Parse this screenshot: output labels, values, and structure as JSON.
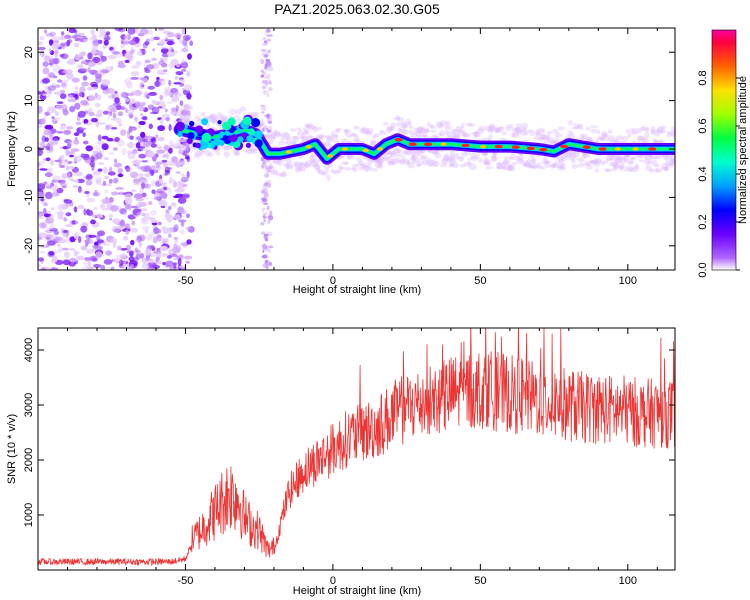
{
  "title": "PAZ1.2025.063.02.30.G05",
  "chart_data": [
    {
      "type": "heatmap",
      "xlabel": "Height of straight line (km)",
      "ylabel": "Frequency (Hz)",
      "xlim": [
        -100,
        116
      ],
      "ylim": [
        -25,
        25
      ],
      "xticks": [
        -50,
        0,
        50,
        100
      ],
      "yticks": [
        -20,
        -10,
        0,
        10,
        20
      ],
      "colorbar": {
        "label": "Normalized spectral amplitude",
        "range": [
          0,
          1
        ],
        "ticks": [
          0.0,
          0.2,
          0.4,
          0.6,
          0.8
        ],
        "colormap": "rainbow"
      },
      "ridge": {
        "x": [
          -52,
          -45,
          -40,
          -35,
          -30,
          -26,
          -22,
          -18,
          -14,
          -10,
          -6,
          -2,
          2,
          6,
          10,
          14,
          18,
          22,
          26,
          30,
          40,
          50,
          60,
          70,
          75,
          80,
          90,
          100,
          110,
          116
        ],
        "y": [
          4,
          3,
          2.5,
          3,
          4,
          3,
          -1,
          -1,
          -0.5,
          0,
          1,
          -2,
          0,
          0,
          0,
          -1,
          1,
          2,
          1,
          1,
          1,
          0.5,
          0.5,
          0,
          -0.5,
          1,
          0,
          0,
          0,
          0
        ]
      },
      "noise_region_x": [
        -100,
        -48
      ],
      "noise_band_x": [
        -24,
        -21
      ]
    },
    {
      "type": "line",
      "xlabel": "Height of straight line (km)",
      "ylabel": "SNR (10 * v/v)",
      "xlim": [
        -100,
        116
      ],
      "ylim": [
        0,
        4400
      ],
      "xticks": [
        -50,
        0,
        50,
        100
      ],
      "yticks": [
        1000,
        2000,
        3000,
        4000
      ],
      "color": "#ee3333",
      "envelope": {
        "x": [
          -100,
          -55,
          -50,
          -48,
          -45,
          -40,
          -35,
          -32,
          -30,
          -28,
          -25,
          -22,
          -20,
          -18,
          -15,
          -10,
          -5,
          0,
          5,
          10,
          15,
          20,
          25,
          30,
          35,
          40,
          45,
          50,
          55,
          60,
          65,
          70,
          75,
          80,
          85,
          90,
          95,
          100,
          105,
          110,
          116
        ],
        "y": [
          150,
          150,
          200,
          450,
          600,
          900,
          1200,
          1100,
          800,
          700,
          600,
          300,
          350,
          800,
          1400,
          1800,
          2000,
          2200,
          2400,
          2500,
          2600,
          2800,
          2950,
          3050,
          3100,
          3200,
          3250,
          3300,
          3250,
          3200,
          3150,
          3100,
          3050,
          3000,
          2950,
          2950,
          2900,
          2900,
          2850,
          2850,
          2850
        ]
      }
    }
  ]
}
